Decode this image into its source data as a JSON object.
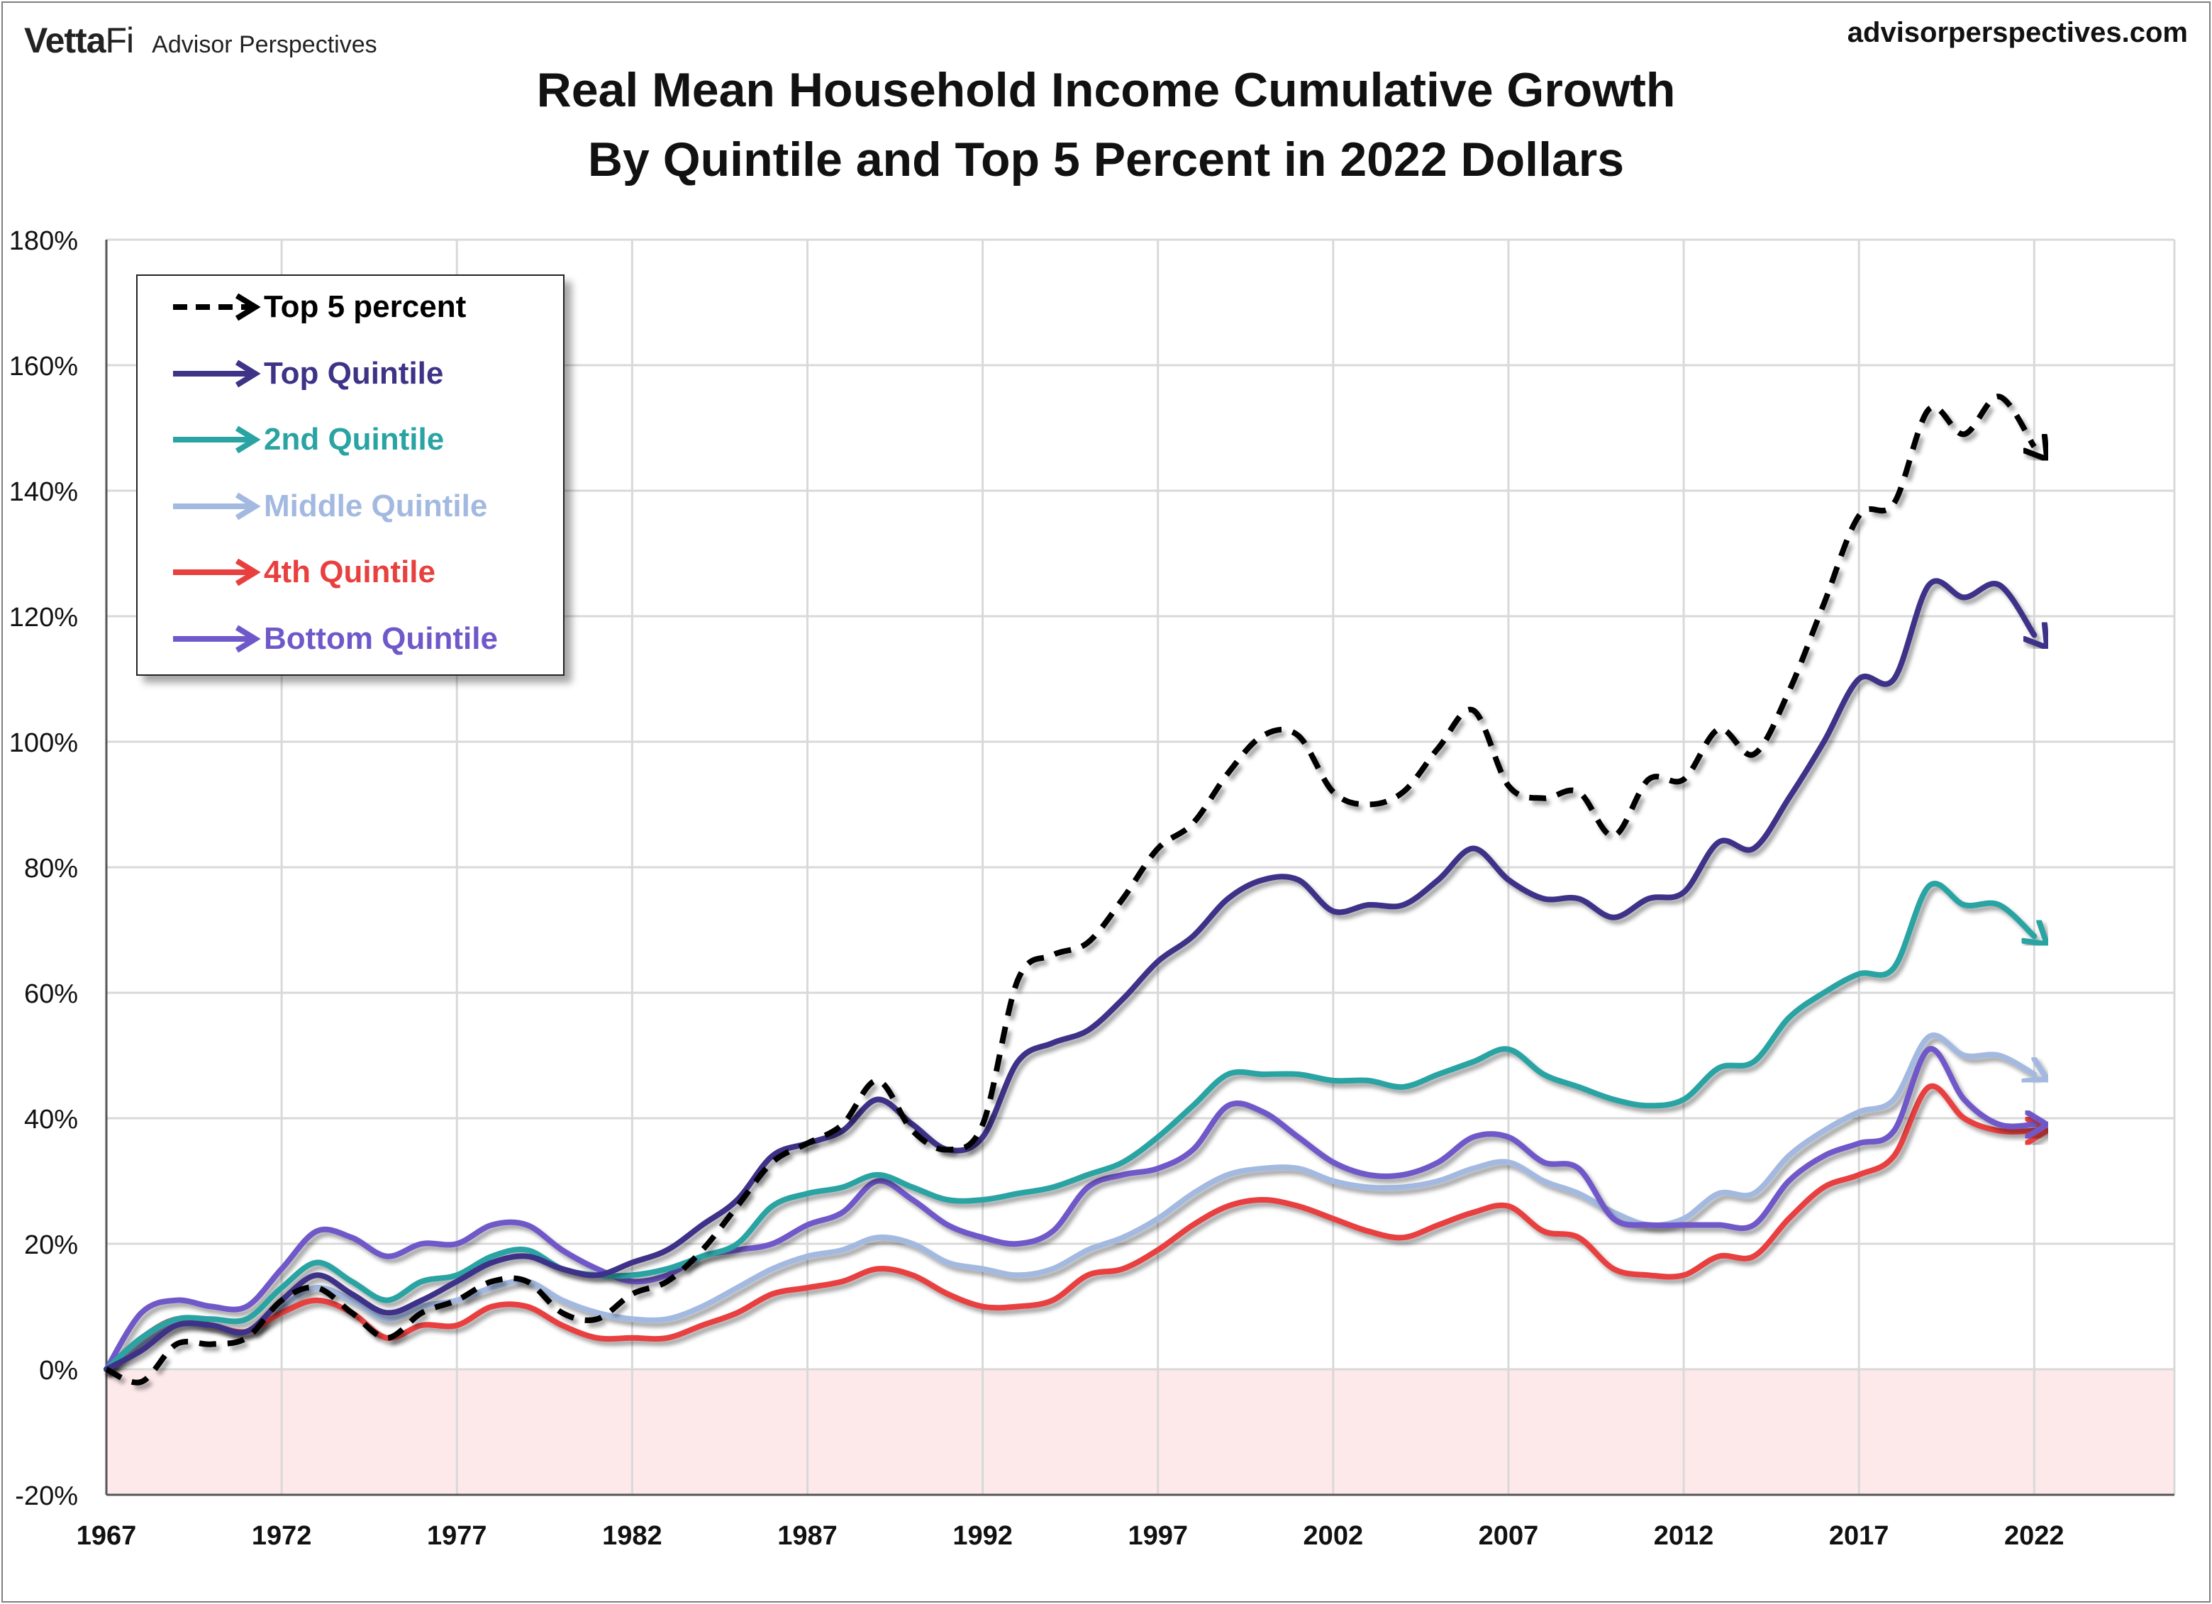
{
  "header": {
    "brand_logo_a": "Vetta",
    "brand_logo_b": "Fi",
    "brand_name": "Advisor Perspectives",
    "site": "advisorperspectives.com"
  },
  "colors": {
    "top5": "#000000",
    "top": "#3d3387",
    "second": "#2aa3a3",
    "middle": "#a3b9e0",
    "fourth": "#e8403f",
    "bottom": "#6f58c9",
    "negative_band": "#fde9ea",
    "grid": "#d9d9d9"
  },
  "chart_data": {
    "type": "line",
    "title": "Real Mean Household Income Cumulative Growth",
    "subtitle": "By Quintile and Top 5 Percent in 2022 Dollars",
    "xlabel": "",
    "ylabel": "",
    "xlim": [
      1967,
      2025
    ],
    "ylim": [
      -20,
      180
    ],
    "x_ticks": [
      "1967",
      "1972",
      "1977",
      "1982",
      "1987",
      "1992",
      "1997",
      "2002",
      "2007",
      "2012",
      "2017",
      "2022"
    ],
    "y_ticks": [
      "-20%",
      "0%",
      "20%",
      "40%",
      "60%",
      "80%",
      "100%",
      "120%",
      "140%",
      "160%",
      "180%"
    ],
    "legend_position": "top-left",
    "x": [
      1967,
      1968,
      1969,
      1970,
      1971,
      1972,
      1973,
      1974,
      1975,
      1976,
      1977,
      1978,
      1979,
      1980,
      1981,
      1982,
      1983,
      1984,
      1985,
      1986,
      1987,
      1988,
      1989,
      1990,
      1991,
      1992,
      1993,
      1994,
      1995,
      1996,
      1997,
      1998,
      1999,
      2000,
      2001,
      2002,
      2003,
      2004,
      2005,
      2006,
      2007,
      2008,
      2009,
      2010,
      2011,
      2012,
      2013,
      2014,
      2015,
      2016,
      2017,
      2018,
      2019,
      2020,
      2021,
      2022
    ],
    "series": [
      {
        "name": "Top 5 percent",
        "key": "top5",
        "dashed": true,
        "values": [
          0,
          -2,
          4,
          4,
          5,
          11,
          13,
          9,
          5,
          9,
          11,
          14,
          14,
          9,
          8,
          12,
          14,
          19,
          26,
          33,
          36,
          39,
          46,
          38,
          35,
          39,
          62,
          66,
          68,
          75,
          83,
          87,
          95,
          101,
          101,
          92,
          90,
          92,
          99,
          105,
          93,
          91,
          92,
          85,
          94,
          94,
          102,
          98,
          108,
          122,
          136,
          138,
          153,
          149,
          155,
          147
        ]
      },
      {
        "name": "Top Quintile",
        "key": "top",
        "dashed": false,
        "values": [
          0,
          3,
          7,
          7,
          6,
          11,
          15,
          12,
          9,
          11,
          14,
          17,
          18,
          16,
          15,
          17,
          19,
          23,
          27,
          34,
          36,
          38,
          43,
          39,
          35,
          37,
          49,
          52,
          54,
          59,
          65,
          69,
          75,
          78,
          78,
          73,
          74,
          74,
          78,
          83,
          78,
          75,
          75,
          72,
          75,
          76,
          84,
          83,
          91,
          100,
          110,
          110,
          125,
          123,
          125,
          117
        ]
      },
      {
        "name": "2nd Quintile",
        "key": "second",
        "dashed": false,
        "values": [
          0,
          5,
          8,
          8,
          8,
          13,
          17,
          14,
          11,
          14,
          15,
          18,
          19,
          16,
          15,
          15,
          16,
          18,
          20,
          26,
          28,
          29,
          31,
          29,
          27,
          27,
          28,
          29,
          31,
          33,
          37,
          42,
          47,
          47,
          47,
          46,
          46,
          45,
          47,
          49,
          51,
          47,
          45,
          43,
          42,
          43,
          48,
          49,
          56,
          60,
          63,
          64,
          77,
          74,
          74,
          69
        ]
      },
      {
        "name": "Middle Quintile",
        "key": "middle",
        "dashed": false,
        "values": [
          0,
          4,
          7,
          7,
          6,
          10,
          13,
          11,
          8,
          10,
          11,
          13,
          14,
          11,
          9,
          8,
          8,
          10,
          13,
          16,
          18,
          19,
          21,
          20,
          17,
          16,
          15,
          16,
          19,
          21,
          24,
          28,
          31,
          32,
          32,
          30,
          29,
          29,
          30,
          32,
          33,
          30,
          28,
          25,
          23,
          24,
          28,
          28,
          34,
          38,
          41,
          43,
          53,
          50,
          50,
          47
        ]
      },
      {
        "name": "4th Quintile",
        "key": "fourth",
        "dashed": false,
        "values": [
          0,
          5,
          8,
          7,
          6,
          9,
          11,
          9,
          5,
          7,
          7,
          10,
          10,
          7,
          5,
          5,
          5,
          7,
          9,
          12,
          13,
          14,
          16,
          15,
          12,
          10,
          10,
          11,
          15,
          16,
          19,
          23,
          26,
          27,
          26,
          24,
          22,
          21,
          23,
          25,
          26,
          22,
          21,
          16,
          15,
          15,
          18,
          18,
          24,
          29,
          31,
          34,
          45,
          40,
          38,
          38
        ]
      },
      {
        "name": "Bottom Quintile",
        "key": "bottom",
        "dashed": false,
        "values": [
          0,
          9,
          11,
          10,
          10,
          16,
          22,
          21,
          18,
          20,
          20,
          23,
          23,
          19,
          16,
          14,
          15,
          18,
          19,
          20,
          23,
          25,
          30,
          27,
          23,
          21,
          20,
          22,
          29,
          31,
          32,
          35,
          42,
          41,
          37,
          33,
          31,
          31,
          33,
          37,
          37,
          33,
          32,
          24,
          23,
          23,
          23,
          23,
          30,
          34,
          36,
          38,
          51,
          43,
          39,
          39
        ]
      }
    ]
  }
}
